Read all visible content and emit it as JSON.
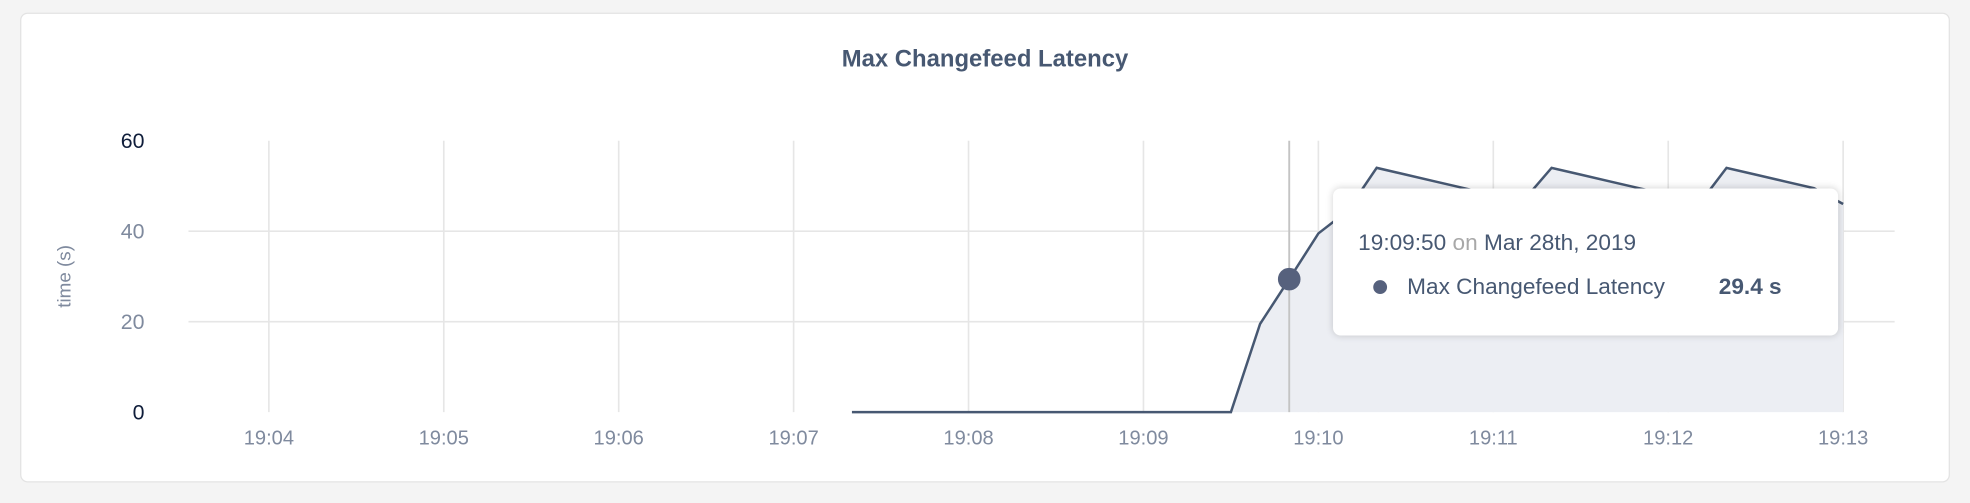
{
  "chart_data": {
    "type": "area",
    "title": "Max Changefeed Latency",
    "ylabel": "time (s)",
    "xlabel": "",
    "ylim": [
      0,
      60
    ],
    "yticks": [
      "0",
      "20",
      "40",
      "60"
    ],
    "xlim": [
      "19:03:30",
      "19:13:20"
    ],
    "xticks": [
      "19:04",
      "19:05",
      "19:06",
      "19:07",
      "19:08",
      "19:09",
      "19:10",
      "19:11",
      "19:12",
      "19:13"
    ],
    "grid": true,
    "colors": {
      "line": "#475872",
      "fill": "#eceef3"
    },
    "series": [
      {
        "name": "Max Changefeed Latency",
        "x": [
          "19:07:20",
          "19:07:30",
          "19:07:40",
          "19:07:50",
          "19:08:00",
          "19:08:10",
          "19:08:20",
          "19:08:30",
          "19:08:40",
          "19:08:50",
          "19:09:00",
          "19:09:10",
          "19:09:20",
          "19:09:30",
          "19:09:40",
          "19:09:50",
          "19:10:00",
          "19:10:10",
          "19:10:20",
          "19:10:30",
          "19:10:40",
          "19:10:50",
          "19:11:00",
          "19:11:10",
          "19:11:20",
          "19:11:30",
          "19:11:40",
          "19:11:50",
          "19:12:00",
          "19:12:10",
          "19:12:20",
          "19:12:30",
          "19:12:40",
          "19:12:50",
          "19:13:00"
        ],
        "values": [
          0,
          0,
          0,
          0,
          0,
          0,
          0,
          0,
          0,
          0,
          0,
          0,
          0,
          0,
          19.5,
          29.4,
          39.5,
          44.5,
          54,
          52.5,
          51,
          49.5,
          48,
          46.5,
          54,
          52.5,
          51,
          49.5,
          48,
          45.5,
          54,
          52.5,
          51,
          49.5,
          46
        ]
      }
    ],
    "hover": {
      "x": "19:09:50",
      "value": 29.4
    }
  },
  "tooltip": {
    "time": "19:09:50",
    "on": "on",
    "date": "Mar 28th, 2019",
    "series_label": "Max Changefeed Latency",
    "value": "29.4 s"
  }
}
